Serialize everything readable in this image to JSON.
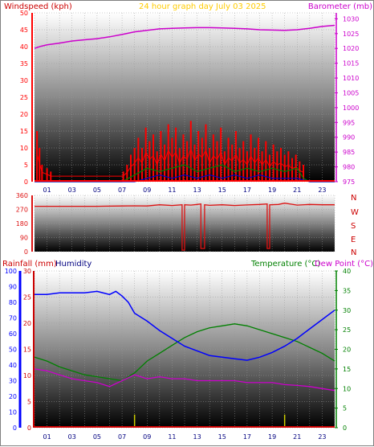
{
  "colors": {
    "wind": "#ff0000",
    "gust": "#ff0000",
    "wind_avg": "#008000",
    "wind_low": "#0000cc",
    "baro": "#cc00cc",
    "direction": "#dd1111",
    "rain": "#cc0000",
    "humidity": "#0000ff",
    "humidity_axis": "#0000ff",
    "temperature": "#008000",
    "temperature_axis": "#008000",
    "dewpoint": "#cc00cc",
    "title": "#ffcc00",
    "grid": "#aaaaaa"
  },
  "header": {
    "title": "24 hour graph day   July 03 2025",
    "wind_label": "Windspeed (kph)",
    "baro_label": "Barometer (mb)",
    "rain_label": "Rainfall (mm)",
    "humidity_label": "Humidity",
    "temp_label": "Temperature (°C)",
    "dew_label": "Dew Point (°C)"
  },
  "compass": {
    "n": "N",
    "w": "W",
    "s": "S",
    "e": "E",
    "n2": "N"
  },
  "x_ticks": [
    "01",
    "03",
    "05",
    "07",
    "09",
    "11",
    "13",
    "15",
    "17",
    "19",
    "21",
    "23"
  ],
  "chart_data": [
    {
      "type": "line",
      "name": "wind-baro",
      "x_range": [
        0,
        24
      ],
      "y_left": {
        "label": "Windspeed (kph)",
        "range": [
          0,
          50
        ],
        "ticks": [
          0,
          5,
          10,
          15,
          20,
          25,
          30,
          35,
          40,
          45,
          50
        ]
      },
      "y_right": {
        "label": "Barometer (mb)",
        "range": [
          975,
          1032
        ],
        "ticks": [
          975,
          980,
          985,
          990,
          995,
          1000,
          1005,
          1010,
          1015,
          1020,
          1025,
          1030
        ]
      },
      "barometer": {
        "x": [
          0,
          0.5,
          1,
          2,
          3,
          4,
          5,
          6,
          7,
          8,
          9,
          10,
          11,
          12,
          13,
          14,
          15,
          16,
          17,
          18,
          19,
          20,
          21,
          22,
          23,
          24
        ],
        "y": [
          1020.0,
          1020.7,
          1021.2,
          1021.8,
          1022.5,
          1022.9,
          1023.3,
          1023.9,
          1024.7,
          1025.6,
          1026.1,
          1026.6,
          1026.8,
          1026.9,
          1027.0,
          1027.0,
          1026.9,
          1026.8,
          1026.6,
          1026.3,
          1026.2,
          1026.1,
          1026.3,
          1026.8,
          1027.4,
          1027.8
        ]
      },
      "gust_events": [
        {
          "x": 0.2,
          "y": 15
        },
        {
          "x": 0.4,
          "y": 10
        },
        {
          "x": 0.6,
          "y": 5
        },
        {
          "x": 1.0,
          "y": 4
        },
        {
          "x": 1.3,
          "y": 3
        },
        {
          "x": 7.1,
          "y": 3
        },
        {
          "x": 7.4,
          "y": 5
        },
        {
          "x": 7.7,
          "y": 8
        },
        {
          "x": 8.0,
          "y": 10
        },
        {
          "x": 8.3,
          "y": 13
        },
        {
          "x": 8.6,
          "y": 10
        },
        {
          "x": 8.9,
          "y": 16
        },
        {
          "x": 9.2,
          "y": 12
        },
        {
          "x": 9.5,
          "y": 14
        },
        {
          "x": 9.8,
          "y": 9
        },
        {
          "x": 10.1,
          "y": 15
        },
        {
          "x": 10.4,
          "y": 11
        },
        {
          "x": 10.7,
          "y": 17
        },
        {
          "x": 11.0,
          "y": 13
        },
        {
          "x": 11.3,
          "y": 16
        },
        {
          "x": 11.6,
          "y": 10
        },
        {
          "x": 11.9,
          "y": 14
        },
        {
          "x": 12.2,
          "y": 12
        },
        {
          "x": 12.5,
          "y": 18
        },
        {
          "x": 12.8,
          "y": 11
        },
        {
          "x": 13.1,
          "y": 15
        },
        {
          "x": 13.4,
          "y": 13
        },
        {
          "x": 13.7,
          "y": 17
        },
        {
          "x": 14.0,
          "y": 10
        },
        {
          "x": 14.3,
          "y": 14
        },
        {
          "x": 14.6,
          "y": 12
        },
        {
          "x": 14.9,
          "y": 16
        },
        {
          "x": 15.2,
          "y": 9
        },
        {
          "x": 15.5,
          "y": 13
        },
        {
          "x": 15.8,
          "y": 11
        },
        {
          "x": 16.1,
          "y": 15
        },
        {
          "x": 16.4,
          "y": 10
        },
        {
          "x": 16.7,
          "y": 12
        },
        {
          "x": 17.0,
          "y": 9
        },
        {
          "x": 17.3,
          "y": 14
        },
        {
          "x": 17.6,
          "y": 10
        },
        {
          "x": 17.9,
          "y": 13
        },
        {
          "x": 18.2,
          "y": 9
        },
        {
          "x": 18.5,
          "y": 12
        },
        {
          "x": 18.8,
          "y": 8
        },
        {
          "x": 19.1,
          "y": 11
        },
        {
          "x": 19.4,
          "y": 9
        },
        {
          "x": 19.7,
          "y": 10
        },
        {
          "x": 20.0,
          "y": 8
        },
        {
          "x": 20.3,
          "y": 9
        },
        {
          "x": 20.6,
          "y": 7
        },
        {
          "x": 20.9,
          "y": 8
        },
        {
          "x": 21.2,
          "y": 6
        },
        {
          "x": 21.5,
          "y": 5
        }
      ],
      "avg_wind": {
        "x": [
          0,
          7,
          7.5,
          8,
          9,
          10,
          11,
          12,
          13,
          14,
          15,
          16,
          17,
          18,
          19,
          20,
          21,
          21.5,
          22,
          24
        ],
        "y": [
          0,
          0,
          1,
          2,
          4,
          3,
          4,
          5,
          3,
          4,
          5,
          3,
          4,
          3,
          4,
          3,
          4,
          1,
          0,
          0
        ]
      },
      "low_wind": {
        "x": [
          0,
          8,
          9,
          10,
          11,
          12,
          13,
          14,
          15,
          16,
          17,
          18,
          19,
          20,
          21,
          22,
          24
        ],
        "y": [
          0,
          0,
          1,
          2,
          1,
          2,
          1,
          2,
          1,
          2,
          1,
          2,
          1,
          1,
          1,
          0,
          0
        ]
      }
    },
    {
      "type": "line",
      "name": "wind-direction",
      "x_range": [
        0,
        24
      ],
      "y": {
        "range": [
          0,
          360
        ],
        "ticks": [
          0,
          90,
          180,
          270,
          360
        ]
      },
      "direction": {
        "x": [
          0,
          1,
          3,
          5,
          7,
          8,
          9,
          10,
          11,
          11.8,
          11.8,
          12.0,
          12.0,
          12.5,
          13.0,
          13.3,
          13.3,
          13.6,
          13.6,
          14,
          15,
          16,
          17,
          18,
          18.6,
          18.6,
          18.8,
          18.8,
          19.5,
          20,
          21,
          22,
          23,
          24
        ],
        "y": [
          290,
          290,
          290,
          290,
          292,
          293,
          292,
          300,
          295,
          300,
          10,
          10,
          300,
          298,
          302,
          305,
          20,
          20,
          300,
          296,
          300,
          295,
          299,
          302,
          305,
          20,
          20,
          300,
          302,
          310,
          298,
          302,
          300,
          300
        ]
      }
    },
    {
      "type": "line",
      "name": "temp-humidity-rain",
      "x_range": [
        0,
        24
      ],
      "y_rain": {
        "label": "Rainfall (mm)",
        "range": [
          0,
          30
        ],
        "ticks": [
          0,
          5,
          10,
          15,
          20,
          25,
          30
        ]
      },
      "y_humidity": {
        "label": "Humidity",
        "range": [
          0,
          100
        ],
        "ticks": [
          0,
          10,
          20,
          30,
          40,
          50,
          60,
          70,
          80,
          90,
          100
        ]
      },
      "y_temp": {
        "label": "Temperature (°C)",
        "range": [
          0,
          40
        ],
        "ticks": [
          0,
          5,
          10,
          15,
          20,
          25,
          30,
          35,
          40
        ]
      },
      "humidity": {
        "x": [
          0,
          1,
          2,
          3,
          4,
          5,
          6,
          6.5,
          7,
          7.5,
          8,
          9,
          10,
          11,
          12,
          13,
          14,
          15,
          16,
          17,
          18,
          19,
          20,
          21,
          22,
          23,
          24
        ],
        "y": [
          85,
          85,
          86,
          86,
          86,
          87,
          85,
          87,
          84,
          80,
          73,
          68,
          62,
          57,
          52,
          49,
          46,
          45,
          44,
          43,
          45,
          48,
          52,
          57,
          63,
          69,
          75
        ]
      },
      "temperature": {
        "x": [
          0,
          1,
          2,
          3,
          4,
          5,
          6,
          7,
          8,
          9,
          10,
          11,
          12,
          13,
          14,
          15,
          16,
          17,
          18,
          19,
          20,
          21,
          22,
          23,
          24
        ],
        "y": [
          18,
          17,
          15.5,
          14.5,
          13.5,
          13,
          12.5,
          12,
          14,
          17,
          19,
          21,
          23,
          24.5,
          25.5,
          26,
          26.5,
          26,
          25,
          24,
          23,
          22,
          20.5,
          19,
          17
        ]
      },
      "dewpoint": {
        "x": [
          0,
          1,
          2,
          3,
          4,
          5,
          6,
          7,
          8,
          9,
          10,
          11,
          12,
          13,
          14,
          15,
          16,
          17,
          18,
          19,
          20,
          21,
          22,
          23,
          24
        ],
        "y": [
          15,
          14.5,
          13.5,
          12.5,
          12,
          11.5,
          10.5,
          12,
          13.5,
          12.5,
          13,
          12.5,
          12.5,
          12,
          12,
          12,
          12,
          11.5,
          11.5,
          11.5,
          11,
          10.8,
          10.5,
          10,
          9.5
        ]
      },
      "rain_markers": {
        "x": [
          8.0,
          20.0
        ],
        "y": [
          2.5,
          2.5
        ]
      }
    }
  ]
}
